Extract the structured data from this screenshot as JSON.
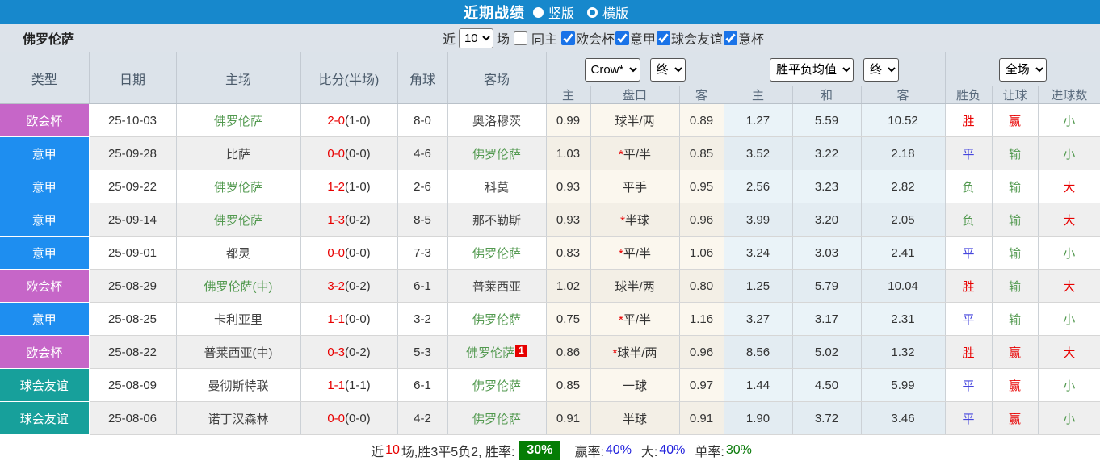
{
  "titlebar": {
    "title": "近期战绩",
    "radio_vertical": "竖版",
    "radio_horizontal": "横版"
  },
  "filterbar": {
    "team": "佛罗伦萨",
    "recent_label": "近",
    "recent_value": "10",
    "games_label": "场",
    "same_home_label": "同主",
    "competitions": [
      {
        "label": "欧会杯",
        "checked": true
      },
      {
        "label": "意甲",
        "checked": true
      },
      {
        "label": "球会友谊",
        "checked": true
      },
      {
        "label": "意杯",
        "checked": true
      }
    ]
  },
  "table": {
    "headers": {
      "type": "类型",
      "date": "日期",
      "home": "主场",
      "score": "比分(半场)",
      "corner": "角球",
      "away": "客场"
    },
    "dropdowns": {
      "bookmaker": "Crow*",
      "bookmaker_state": "终",
      "avg": "胜平负均值",
      "avg_state": "终",
      "scope": "全场"
    },
    "subheaders": [
      "主",
      "盘口",
      "客",
      "主",
      "和",
      "客",
      "胜负",
      "让球",
      "进球数"
    ],
    "rows": [
      {
        "type": "欧会杯",
        "date": "25-10-03",
        "home": "佛罗伦萨",
        "home_fio": true,
        "score_ft": "2-0",
        "score_ht": "(1-0)",
        "corner": "8-0",
        "away": "奥洛穆茨",
        "away_fio": false,
        "away_badge": "",
        "odds_home": "0.99",
        "handicap_star": "",
        "handicap": "球半/两",
        "odds_away": "0.89",
        "avg_home": "1.27",
        "avg_draw": "5.59",
        "avg_away": "10.52",
        "result": "胜",
        "handicap_result": "赢",
        "goals": "小"
      },
      {
        "type": "意甲",
        "date": "25-09-28",
        "home": "比萨",
        "home_fio": false,
        "score_ft": "0-0",
        "score_ht": "(0-0)",
        "corner": "4-6",
        "away": "佛罗伦萨",
        "away_fio": true,
        "away_badge": "",
        "odds_home": "1.03",
        "handicap_star": "*",
        "handicap": "平/半",
        "odds_away": "0.85",
        "avg_home": "3.52",
        "avg_draw": "3.22",
        "avg_away": "2.18",
        "result": "平",
        "handicap_result": "输",
        "goals": "小"
      },
      {
        "type": "意甲",
        "date": "25-09-22",
        "home": "佛罗伦萨",
        "home_fio": true,
        "score_ft": "1-2",
        "score_ht": "(1-0)",
        "corner": "2-6",
        "away": "科莫",
        "away_fio": false,
        "away_badge": "",
        "odds_home": "0.93",
        "handicap_star": "",
        "handicap": "平手",
        "odds_away": "0.95",
        "avg_home": "2.56",
        "avg_draw": "3.23",
        "avg_away": "2.82",
        "result": "负",
        "handicap_result": "输",
        "goals": "大"
      },
      {
        "type": "意甲",
        "date": "25-09-14",
        "home": "佛罗伦萨",
        "home_fio": true,
        "score_ft": "1-3",
        "score_ht": "(0-2)",
        "corner": "8-5",
        "away": "那不勒斯",
        "away_fio": false,
        "away_badge": "",
        "odds_home": "0.93",
        "handicap_star": "*",
        "handicap": "半球",
        "odds_away": "0.96",
        "avg_home": "3.99",
        "avg_draw": "3.20",
        "avg_away": "2.05",
        "result": "负",
        "handicap_result": "输",
        "goals": "大"
      },
      {
        "type": "意甲",
        "date": "25-09-01",
        "home": "都灵",
        "home_fio": false,
        "score_ft": "0-0",
        "score_ht": "(0-0)",
        "corner": "7-3",
        "away": "佛罗伦萨",
        "away_fio": true,
        "away_badge": "",
        "odds_home": "0.83",
        "handicap_star": "*",
        "handicap": "平/半",
        "odds_away": "1.06",
        "avg_home": "3.24",
        "avg_draw": "3.03",
        "avg_away": "2.41",
        "result": "平",
        "handicap_result": "输",
        "goals": "小"
      },
      {
        "type": "欧会杯",
        "date": "25-08-29",
        "home": "佛罗伦萨(中)",
        "home_fio": true,
        "score_ft": "3-2",
        "score_ht": "(0-2)",
        "corner": "6-1",
        "away": "普莱西亚",
        "away_fio": false,
        "away_badge": "",
        "odds_home": "1.02",
        "handicap_star": "",
        "handicap": "球半/两",
        "odds_away": "0.80",
        "avg_home": "1.25",
        "avg_draw": "5.79",
        "avg_away": "10.04",
        "result": "胜",
        "handicap_result": "输",
        "goals": "大"
      },
      {
        "type": "意甲",
        "date": "25-08-25",
        "home": "卡利亚里",
        "home_fio": false,
        "score_ft": "1-1",
        "score_ht": "(0-0)",
        "corner": "3-2",
        "away": "佛罗伦萨",
        "away_fio": true,
        "away_badge": "",
        "odds_home": "0.75",
        "handicap_star": "*",
        "handicap": "平/半",
        "odds_away": "1.16",
        "avg_home": "3.27",
        "avg_draw": "3.17",
        "avg_away": "2.31",
        "result": "平",
        "handicap_result": "输",
        "goals": "小"
      },
      {
        "type": "欧会杯",
        "date": "25-08-22",
        "home": "普莱西亚(中)",
        "home_fio": false,
        "score_ft": "0-3",
        "score_ht": "(0-2)",
        "corner": "5-3",
        "away": "佛罗伦萨",
        "away_fio": true,
        "away_badge": "1",
        "odds_home": "0.86",
        "handicap_star": "*",
        "handicap": "球半/两",
        "odds_away": "0.96",
        "avg_home": "8.56",
        "avg_draw": "5.02",
        "avg_away": "1.32",
        "result": "胜",
        "handicap_result": "赢",
        "goals": "大"
      },
      {
        "type": "球会友谊",
        "date": "25-08-09",
        "home": "曼彻斯特联",
        "home_fio": false,
        "score_ft": "1-1",
        "score_ht": "(1-1)",
        "corner": "6-1",
        "away": "佛罗伦萨",
        "away_fio": true,
        "away_badge": "",
        "odds_home": "0.85",
        "handicap_star": "",
        "handicap": "一球",
        "odds_away": "0.97",
        "avg_home": "1.44",
        "avg_draw": "4.50",
        "avg_away": "5.99",
        "result": "平",
        "handicap_result": "赢",
        "goals": "小"
      },
      {
        "type": "球会友谊",
        "date": "25-08-06",
        "home": "诺丁汉森林",
        "home_fio": false,
        "score_ft": "0-0",
        "score_ht": "(0-0)",
        "corner": "4-2",
        "away": "佛罗伦萨",
        "away_fio": true,
        "away_badge": "",
        "odds_home": "0.91",
        "handicap_star": "",
        "handicap": "半球",
        "odds_away": "0.91",
        "avg_home": "1.90",
        "avg_draw": "3.72",
        "avg_away": "3.46",
        "result": "平",
        "handicap_result": "赢",
        "goals": "小"
      }
    ]
  },
  "colors": {
    "league": {
      "欧会杯": "#c666c8",
      "意甲": "#1e8ef0",
      "球会友谊": "#17a09b"
    },
    "outcome": {
      "胜": "#e80000",
      "平": "#4646dd",
      "负": "#52994f",
      "赢": "#e80000",
      "输": "#52994f",
      "大": "#e80000",
      "小": "#52994f"
    },
    "fiorentina_green": "#52994f",
    "score_red": "#e80000",
    "accent_blue": "#1788cc"
  },
  "summary": {
    "prefix": "近",
    "count": "10",
    "mid": "场,胜3平5负2, 胜率:",
    "win_rate": "30%",
    "handicap_label": "赢率:",
    "handicap_rate": "40%",
    "big_label": "大:",
    "big_rate": "40%",
    "single_label": "单率:",
    "single_rate": "30%"
  }
}
